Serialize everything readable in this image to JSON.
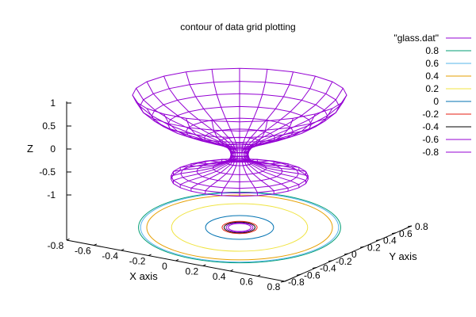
{
  "chart_data": {
    "type": "surface3d_with_contours",
    "title": "contour of data grid plotting",
    "x_axis": {
      "label": "X axis",
      "range": [
        -0.8,
        0.8
      ],
      "ticks": [
        "-0.8",
        "-0.6",
        "-0.4",
        "-0.2",
        "0",
        "0.2",
        "0.4",
        "0.6",
        "0.8"
      ]
    },
    "y_axis": {
      "label": "Y axis",
      "range": [
        -0.8,
        0.8
      ],
      "ticks": [
        "-0.8",
        "-0.6",
        "-0.4",
        "-0.2",
        "0",
        "0.2",
        "0.4",
        "0.6",
        "0.8"
      ]
    },
    "z_axis": {
      "label": "Z",
      "range": [
        -1,
        1
      ],
      "ticks": [
        "1",
        "0.5",
        "0",
        "-0.5",
        "-1"
      ]
    },
    "surface": {
      "name": "\"glass.dat\"",
      "shape": "glass",
      "color": "#9400d3",
      "upper_bowl": {
        "z_rim": 1.0,
        "rim_radius": 0.8,
        "z_neck": 0.05,
        "neck_radius": 0.1
      },
      "lower_disc": {
        "z_outer": -0.45,
        "outer_radius": 0.55,
        "z_inner": -0.4,
        "inner_radius": 0.1
      }
    },
    "contour_levels": [
      {
        "level": "0.8",
        "value": 0.8,
        "color": "#009e73"
      },
      {
        "level": "0.6",
        "value": 0.6,
        "color": "#56b4e9"
      },
      {
        "level": "0.4",
        "value": 0.4,
        "color": "#e69f00"
      },
      {
        "level": "0.2",
        "value": 0.2,
        "color": "#f0e442"
      },
      {
        "level": "0",
        "value": 0.0,
        "color": "#0072b2"
      },
      {
        "level": "-0.2",
        "value": -0.2,
        "color": "#e51e10"
      },
      {
        "level": "-0.4",
        "value": -0.4,
        "color": "#000000"
      },
      {
        "level": "-0.6",
        "value": -0.6,
        "color": "#9400d3"
      },
      {
        "level": "-0.8",
        "value": -0.8,
        "color": "#9400d3"
      }
    ],
    "legend_placement": "top-right"
  }
}
